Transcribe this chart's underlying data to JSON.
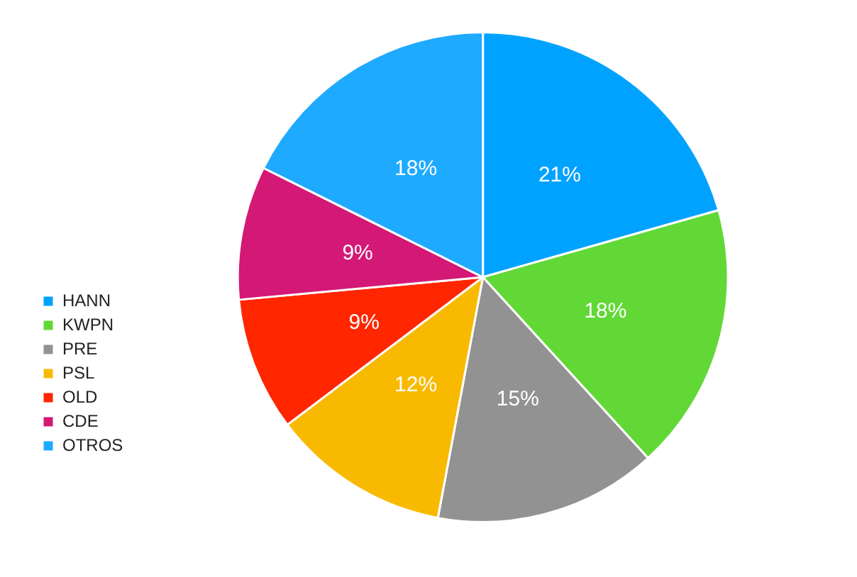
{
  "chart_data": {
    "type": "pie",
    "categories": [
      "HANN",
      "KWPN",
      "PRE",
      "PSL",
      "OLD",
      "CDE",
      "OTROS"
    ],
    "values": [
      21,
      18,
      15,
      12,
      9,
      9,
      18
    ],
    "colors": [
      "#00a2ff",
      "#61d836",
      "#929292",
      "#f8ba00",
      "#ff2600",
      "#d31876",
      "#1eaaff"
    ],
    "value_labels": [
      "21%",
      "18%",
      "15%",
      "12%",
      "9%",
      "9%",
      "18%"
    ],
    "legend": "left"
  }
}
